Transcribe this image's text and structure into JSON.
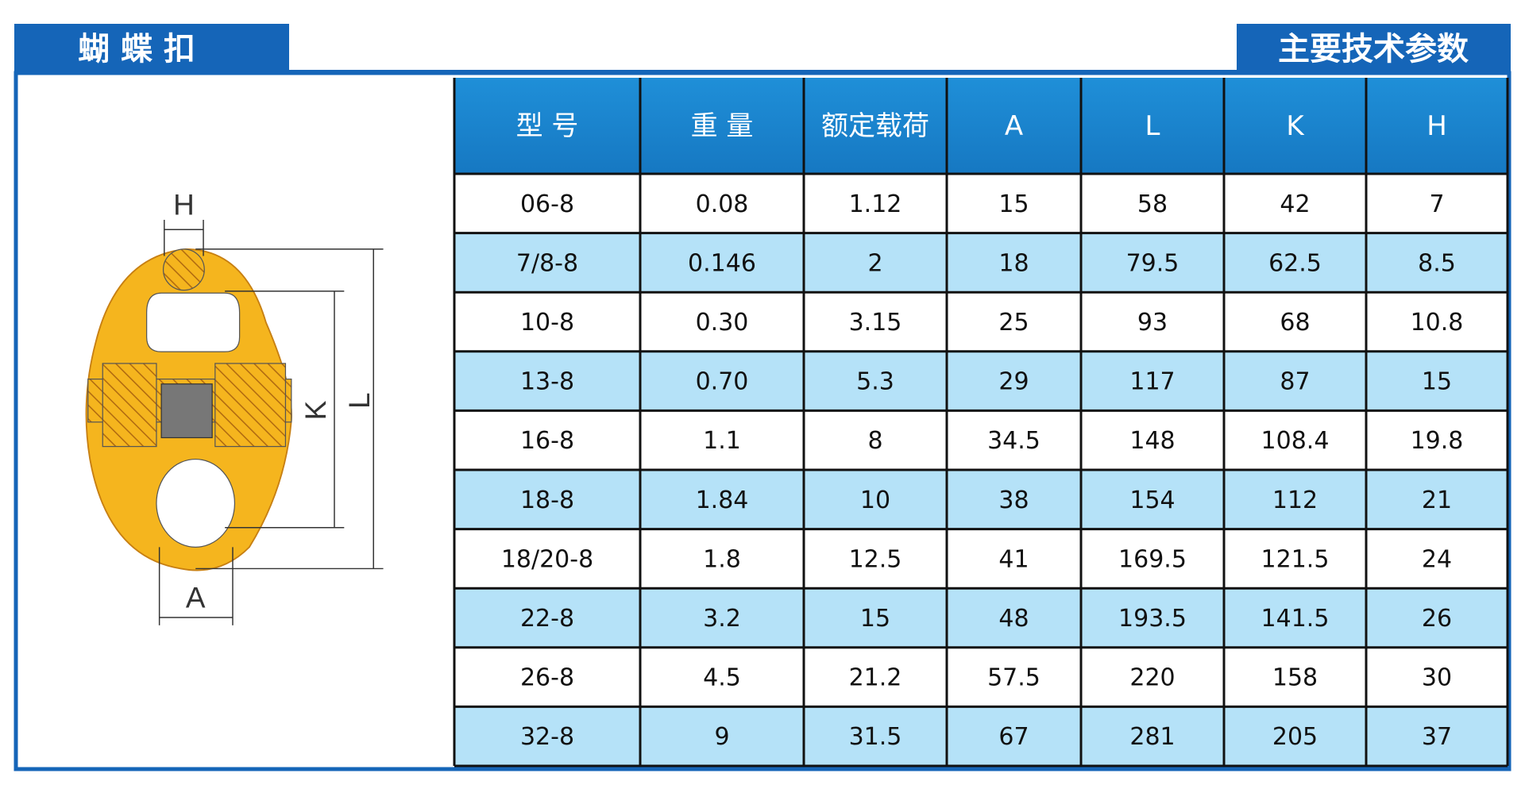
{
  "header": {
    "title": "蝴 蝶 扣",
    "subtitle": "主要技术参数"
  },
  "figure": {
    "labels": {
      "h": "H",
      "k": "K",
      "l": "L",
      "a": "A"
    }
  },
  "table": {
    "columns": [
      "型 号",
      "重 量",
      "额定载荷",
      "A",
      "L",
      "K",
      "H"
    ],
    "rows": [
      [
        "06-8",
        "0.08",
        "1.12",
        "15",
        "58",
        "42",
        "7"
      ],
      [
        "7/8-8",
        "0.146",
        "2",
        "18",
        "79.5",
        "62.5",
        "8.5"
      ],
      [
        "10-8",
        "0.30",
        "3.15",
        "25",
        "93",
        "68",
        "10.8"
      ],
      [
        "13-8",
        "0.70",
        "5.3",
        "29",
        "117",
        "87",
        "15"
      ],
      [
        "16-8",
        "1.1",
        "8",
        "34.5",
        "148",
        "108.4",
        "19.8"
      ],
      [
        "18-8",
        "1.84",
        "10",
        "38",
        "154",
        "112",
        "21"
      ],
      [
        "18/20-8",
        "1.8",
        "12.5",
        "41",
        "169.5",
        "121.5",
        "24"
      ],
      [
        "22-8",
        "3.2",
        "15",
        "48",
        "193.5",
        "141.5",
        "26"
      ],
      [
        "26-8",
        "4.5",
        "21.2",
        "57.5",
        "220",
        "158",
        "30"
      ],
      [
        "32-8",
        "9",
        "31.5",
        "67",
        "281",
        "205",
        "37"
      ]
    ]
  }
}
